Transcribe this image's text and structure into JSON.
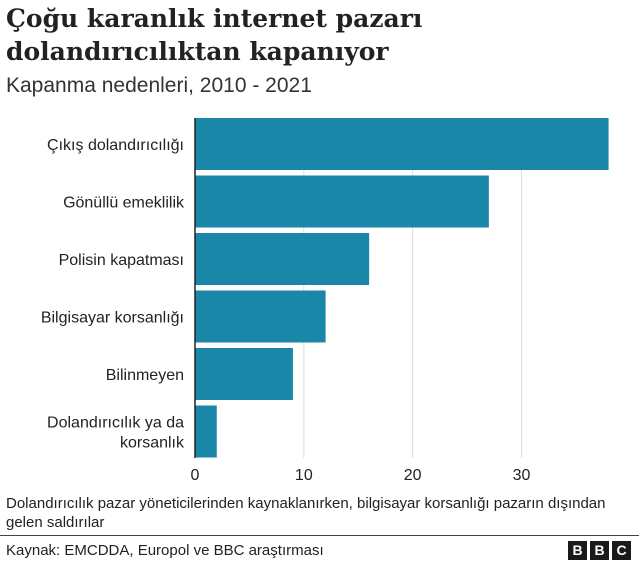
{
  "header": {
    "title": "Çoğu karanlık internet pazarı dolandırıcılıktan kapanıyor",
    "subtitle": "Kapanma nedenleri, 2010 - 2021"
  },
  "footer": {
    "note": "Dolandırıcılık pazar yöneticilerinden kaynaklanırken, bilgisayar korsanlığı pazarın dışından gelen saldırılar",
    "source": "Kaynak: EMCDDA, Europol ve BBC araştırması",
    "logo": [
      "B",
      "B",
      "C"
    ]
  },
  "colors": {
    "bar": "#1a87a8",
    "grid": "#dddddd",
    "axis": "#222222"
  },
  "chart_data": {
    "type": "bar",
    "orientation": "horizontal",
    "categories": [
      "Çıkış dolandırıcılığı",
      "Gönüllü emeklilik",
      "Polisin kapatması",
      "Bilgisayar korsanlığı",
      "Bilinmeyen",
      "Dolandırıcılık ya da korsanlık"
    ],
    "values": [
      38,
      27,
      16,
      12,
      9,
      2
    ],
    "xticks": [
      0,
      10,
      20,
      30
    ],
    "xlim": [
      0,
      38.5
    ],
    "grid": "vertical",
    "title": "Çoğu karanlık internet pazarı dolandırıcılıktan kapanıyor",
    "subtitle": "Kapanma nedenleri, 2010 - 2021"
  }
}
